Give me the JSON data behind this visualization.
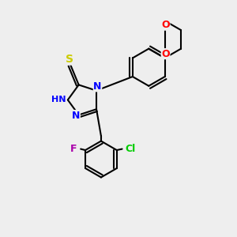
{
  "bg_color": "#eeeeee",
  "bond_color": "#000000",
  "atom_colors": {
    "N": "#0000ff",
    "H": "#00aaaa",
    "S": "#cccc00",
    "O": "#ff0000",
    "F": "#aa00aa",
    "Cl": "#00cc00",
    "C": "#000000"
  },
  "font_size": 9,
  "line_width": 1.5,
  "fig_size": [
    3.0,
    3.0
  ],
  "dpi": 100,
  "xlim": [
    0,
    10
  ],
  "ylim": [
    0,
    10
  ]
}
